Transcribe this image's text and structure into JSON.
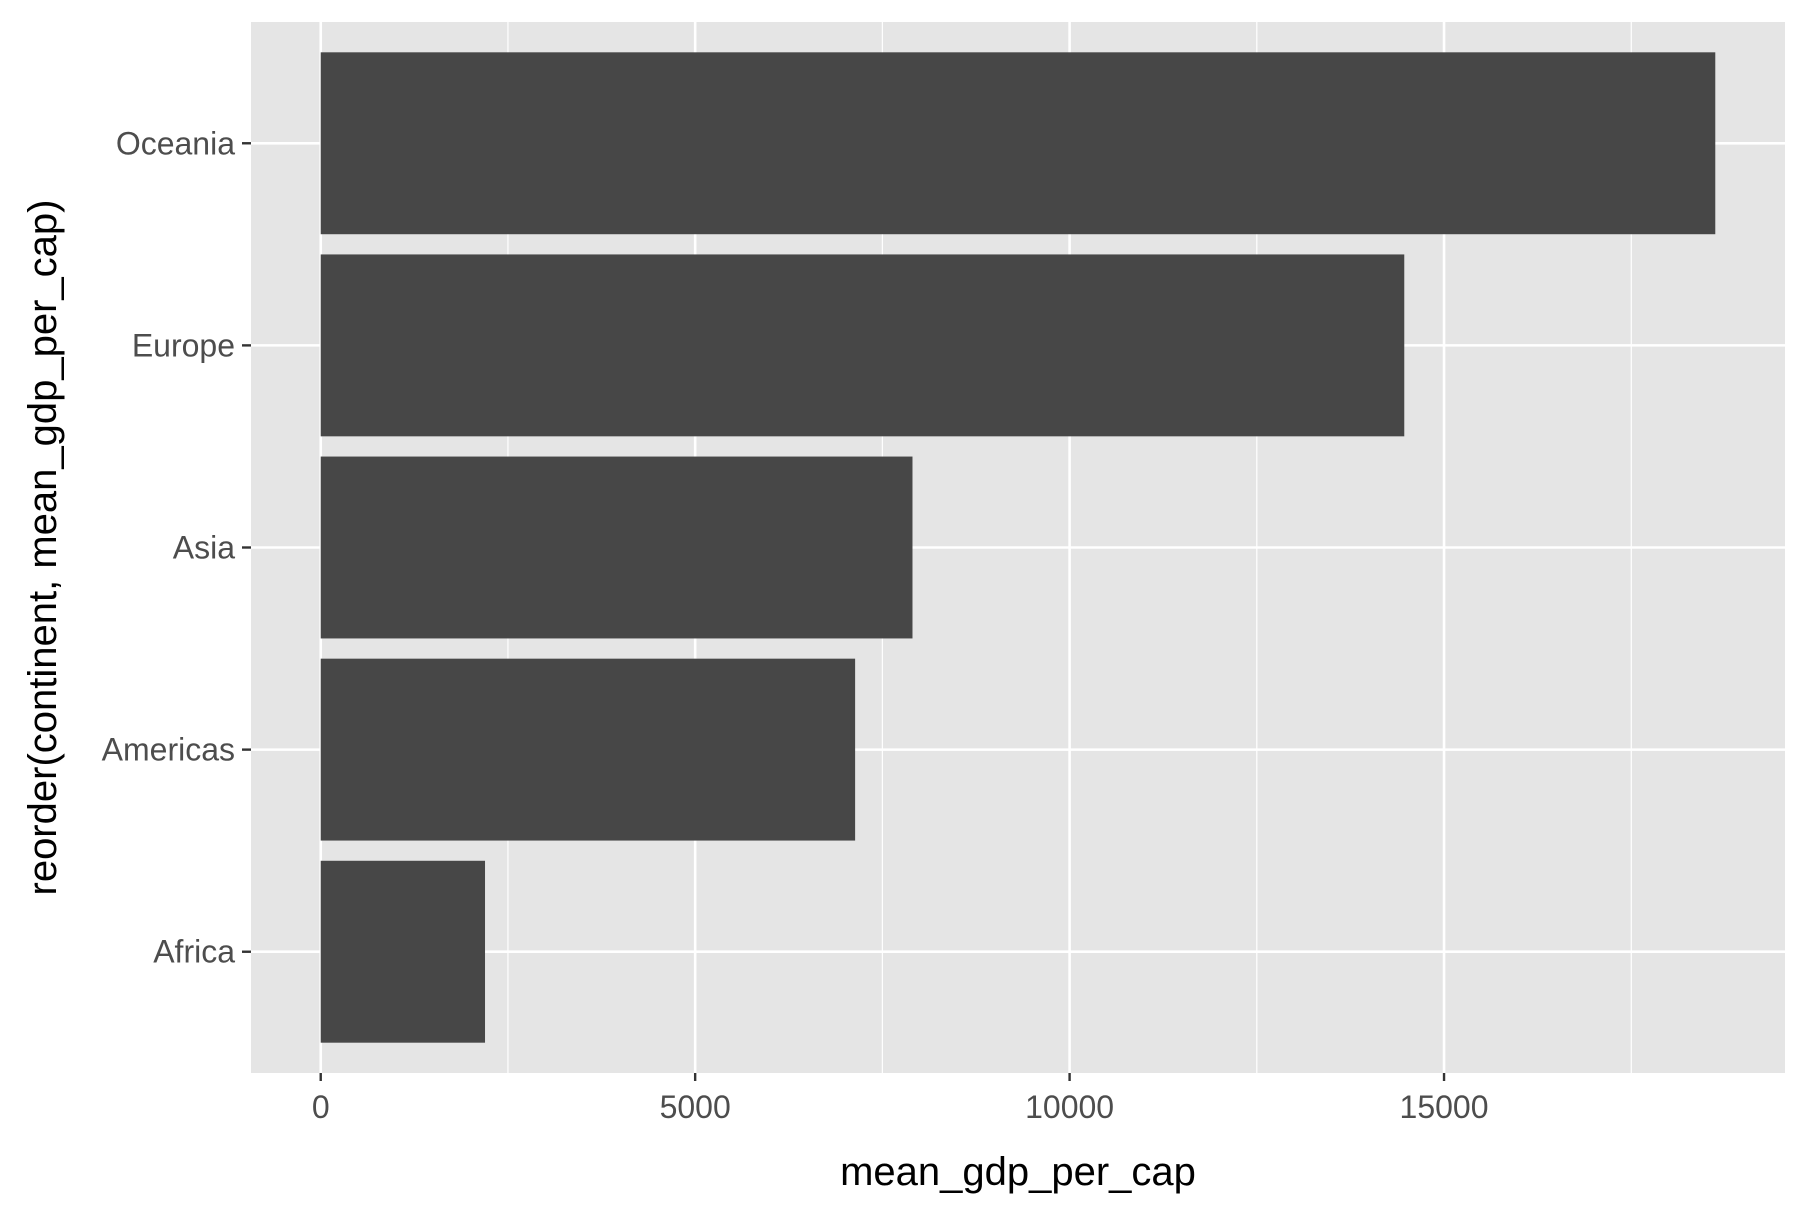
{
  "colors": {
    "panel_background": "#e5e5e5",
    "grid_major": "#ffffff",
    "bar_fill": "#474747",
    "tick_text": "#4d4d4d",
    "tick_mark": "#333333"
  },
  "chart_data": {
    "type": "bar",
    "orientation": "horizontal",
    "categories": [
      "Africa",
      "Americas",
      "Asia",
      "Europe",
      "Oceania"
    ],
    "values": [
      2194,
      7136,
      7902,
      14469,
      18622
    ],
    "xlabel": "mean_gdp_per_cap",
    "ylabel": "reorder(continent, mean_gdp_per_cap)",
    "xlim": [
      -931,
      19553
    ],
    "x_ticks": [
      0,
      5000,
      10000,
      15000
    ],
    "x_tick_labels": [
      "0",
      "5000",
      "10000",
      "15000"
    ],
    "grid": true,
    "legend": "none"
  }
}
